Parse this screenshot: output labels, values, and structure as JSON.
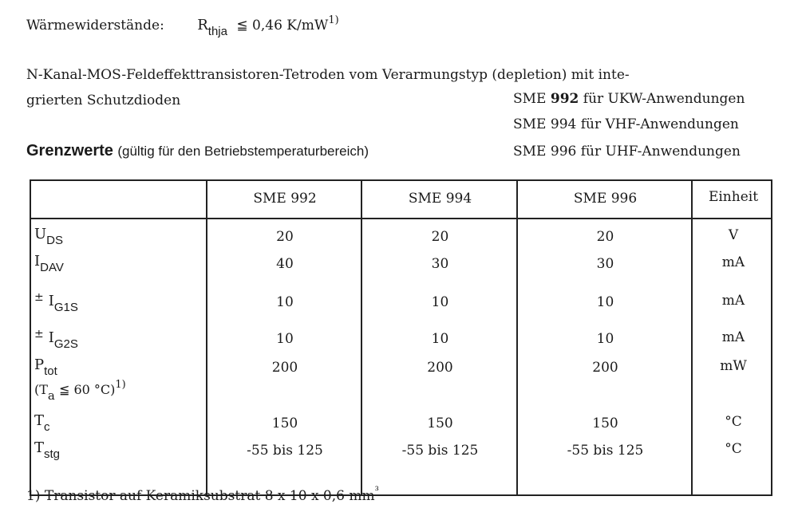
{
  "thermal": {
    "label": "Wärmewiderstände:",
    "symbol": "R",
    "symbol_sub": "thja",
    "relation": "≦",
    "value": "0,46 K/mW",
    "footnote_ref": "1)"
  },
  "description": {
    "line1": "N-Kanal-MOS-Feldeffekttransistoren-Tetroden  vom  Verarmungstyp  (depletion)  mit  inte-",
    "line2": "grierten Schutzdioden"
  },
  "variants": [
    {
      "prefix": "SME ",
      "type": "992",
      "suffix": " für UKW-Anwendungen"
    },
    {
      "prefix": "SME ",
      "type": "994",
      "suffix": " für VHF-Anwendungen"
    },
    {
      "prefix": "SME ",
      "type": "996",
      "suffix": " für UHF-Anwendungen"
    }
  ],
  "limits": {
    "title": "Grenzwerte",
    "subtitle": "(gültig für den Betriebstemperaturbereich)"
  },
  "table": {
    "headers": [
      "SME 992",
      "SME 994",
      "SME 996",
      "Einheit"
    ],
    "rows": [
      {
        "sym": "U",
        "sub": "DS",
        "pre": "",
        "values": [
          "20",
          "20",
          "20"
        ],
        "unit": "V"
      },
      {
        "sym": "I",
        "sub": "DAV",
        "pre": "",
        "values": [
          "40",
          "30",
          "30"
        ],
        "unit": "mA"
      },
      {
        "sym": "I",
        "sub": "G1S",
        "pre": "±",
        "values": [
          "10",
          "10",
          "10"
        ],
        "unit": "mA"
      },
      {
        "sym": "I",
        "sub": "G2S",
        "pre": "±",
        "values": [
          "10",
          "10",
          "10"
        ],
        "unit": "mA"
      },
      {
        "sym": "P",
        "sub": "tot",
        "pre": "",
        "values": [
          "200",
          "200",
          "200"
        ],
        "unit": "mW",
        "note": {
          "open": "(T",
          "sub": "a",
          "rest": " ≦ 60 °C)",
          "ref": "1)"
        }
      },
      {
        "sym": "T",
        "sub": "c",
        "pre": "",
        "values": [
          "150",
          "150",
          "150"
        ],
        "unit": "°C"
      },
      {
        "sym": "T",
        "sub": "stg",
        "pre": "",
        "values": [
          "-55 bis 125",
          "-55 bis 125",
          "-55 bis 125"
        ],
        "unit": "°C"
      }
    ]
  },
  "footnote": {
    "text": "1) Transistor auf Keramiksubstrat 8 x 10 x 0,6 mm",
    "sup": "³"
  }
}
